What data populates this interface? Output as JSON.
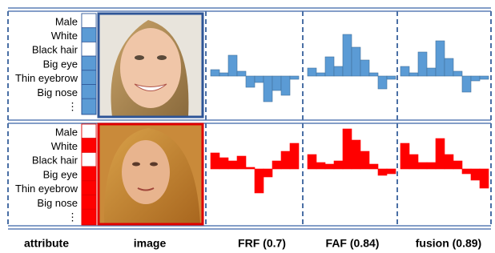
{
  "attributes": [
    "Male",
    "White",
    "Black hair",
    "Big eye",
    "Thin eyebrow",
    "Big nose"
  ],
  "more": "⋮",
  "column_labels": [
    "attribute",
    "image",
    "FRF  (0.7)",
    "FAF (0.84)",
    "fusion (0.89)"
  ],
  "rows": [
    {
      "color": "#5b9bd5",
      "border": "#2e5597",
      "attribute_present": [
        0,
        1,
        0,
        1,
        1,
        1
      ],
      "charts": [
        {
          "values": [
            8,
            4,
            26,
            6,
            -14,
            -8,
            -32,
            -18,
            -24,
            -4
          ]
        },
        {
          "values": [
            10,
            4,
            24,
            12,
            52,
            36,
            20,
            4,
            -16,
            -4
          ]
        },
        {
          "values": [
            12,
            4,
            30,
            10,
            44,
            22,
            6,
            -20,
            -6,
            -4
          ]
        }
      ]
    },
    {
      "color": "#ff0000",
      "border": "#e00000",
      "attribute_present": [
        0,
        1,
        0,
        1,
        1,
        1
      ],
      "charts": [
        {
          "values": [
            20,
            14,
            10,
            16,
            2,
            -30,
            -10,
            10,
            22,
            32
          ]
        },
        {
          "values": [
            18,
            8,
            6,
            10,
            50,
            36,
            22,
            6,
            -8,
            -6
          ]
        },
        {
          "values": [
            32,
            18,
            8,
            8,
            38,
            18,
            10,
            -6,
            -14,
            -24
          ]
        }
      ]
    }
  ]
}
